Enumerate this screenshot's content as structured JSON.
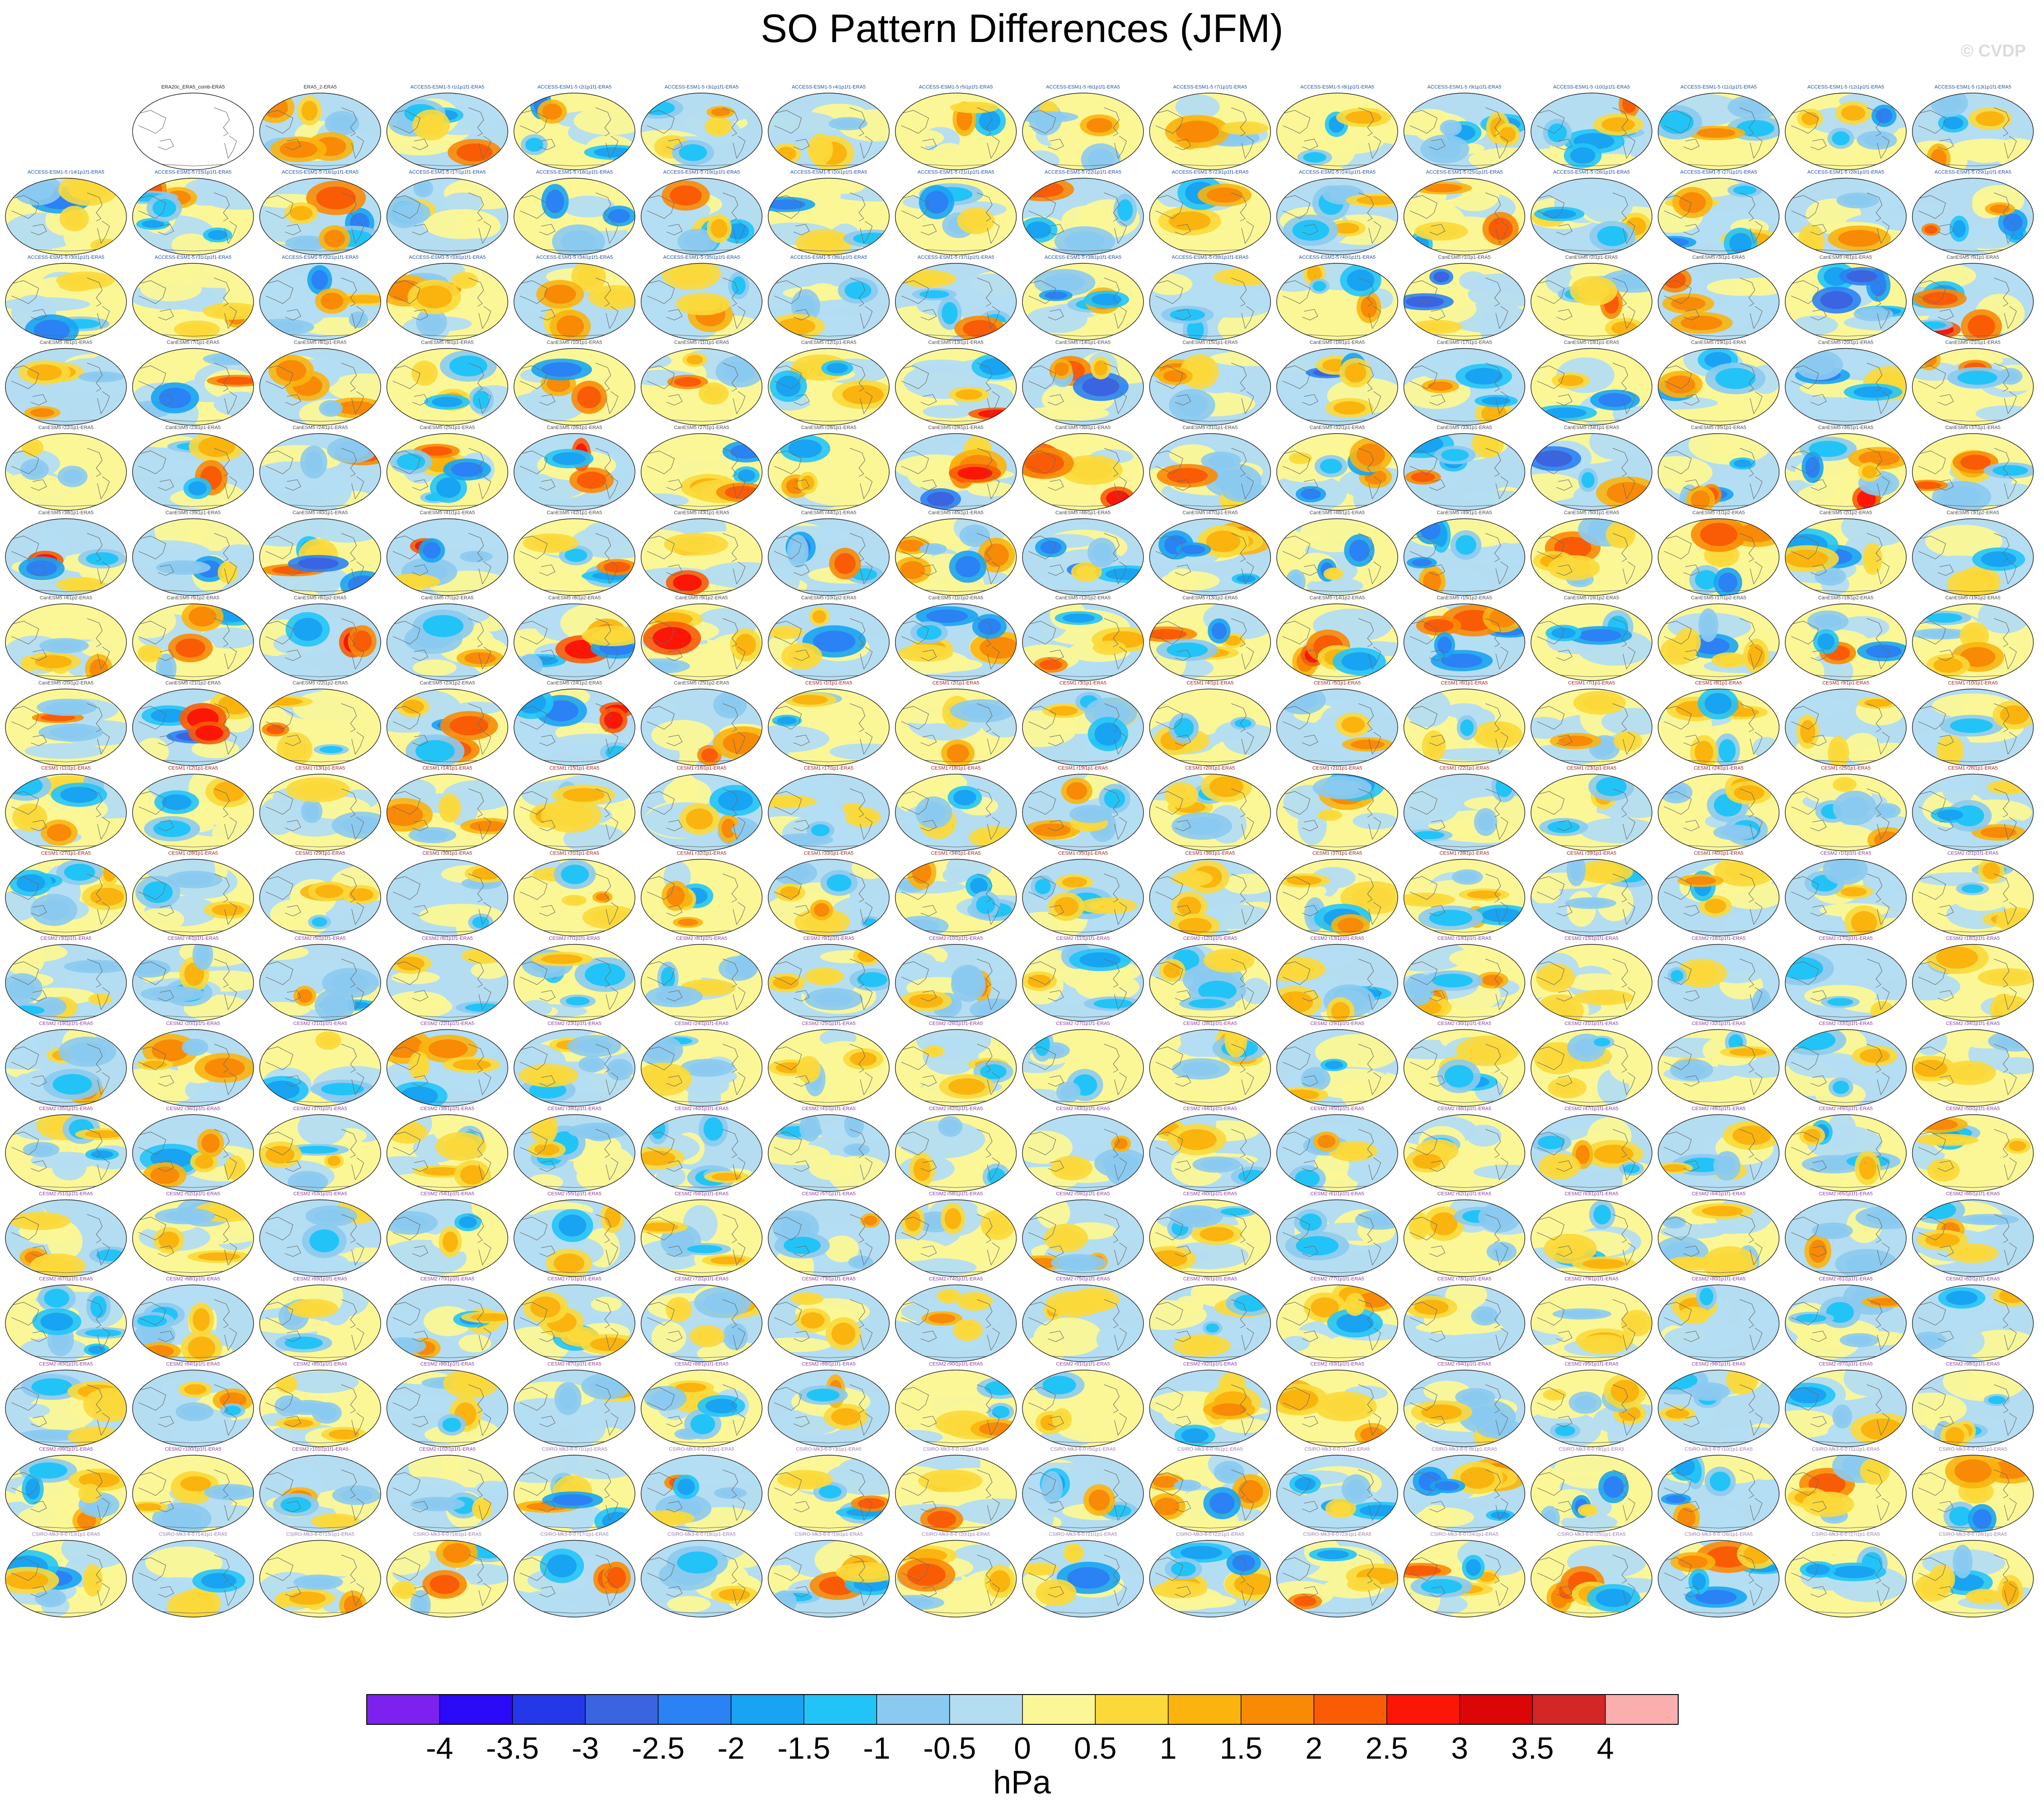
{
  "title": "SO Pattern Differences (JFM)",
  "watermark": "© CVDP",
  "unit_label": "hPa",
  "chart_data": {
    "type": "heatmap",
    "title": "SO Pattern Differences (JFM)",
    "units": "hPa",
    "grid": {
      "rows": 18,
      "cols": 16,
      "first_row_offset": 1
    },
    "reference_panel": {
      "title": "ERA20c_ERA5_comb-ERA5"
    },
    "colorbar": {
      "ticks": [
        "-4",
        "-3.5",
        "-3",
        "-2.5",
        "-2",
        "-1.5",
        "-1",
        "-0.5",
        "0",
        "0.5",
        "1",
        "1.5",
        "2",
        "2.5",
        "3",
        "3.5",
        "4"
      ],
      "colors": [
        "#7d22ee",
        "#2a0af7",
        "#2538e8",
        "#3a64e0",
        "#2a82f4",
        "#18a4f2",
        "#22c4f8",
        "#8bcaf0",
        "#b4ddf2",
        "#fbf796",
        "#fbd93a",
        "#fbb40e",
        "#f98a06",
        "#fa5c06",
        "#fb1606",
        "#dd0606",
        "#d32626",
        "#fbaeae"
      ]
    },
    "panel_titles": [
      "ERA5_2-ERA5",
      "ACCESS-ESM1-5 r1i1p1f1-ERA5",
      "ACCESS-ESM1-5 r2i1p1f1-ERA5",
      "ACCESS-ESM1-5 r3i1p1f1-ERA5",
      "ACCESS-ESM1-5 r4i1p1f1-ERA5",
      "ACCESS-ESM1-5 r5i1p1f1-ERA5",
      "ACCESS-ESM1-5 r6i1p1f1-ERA5",
      "ACCESS-ESM1-5 r7i1p1f1-ERA5",
      "ACCESS-ESM1-5 r8i1p1f1-ERA5",
      "ACCESS-ESM1-5 r9i1p1f1-ERA5",
      "ACCESS-ESM1-5 r10i1p1f1-ERA5",
      "ACCESS-ESM1-5 r11i1p1f1-ERA5",
      "ACCESS-ESM1-5 r12i1p1f1-ERA5",
      "ACCESS-ESM1-5 r13i1p1f1-ERA5",
      "ACCESS-ESM1-5 r14i1p1f1-ERA5",
      "ACCESS-ESM1-5 r15i1p1f1-ERA5",
      "ACCESS-ESM1-5 r16i1p1f1-ERA5",
      "ACCESS-ESM1-5 r17i1p1f1-ERA5",
      "ACCESS-ESM1-5 r18i1p1f1-ERA5",
      "ACCESS-ESM1-5 r19i1p1f1-ERA5",
      "ACCESS-ESM1-5 r20i1p1f1-ERA5",
      "ACCESS-ESM1-5 r21i1p1f1-ERA5",
      "ACCESS-ESM1-5 r22i1p1f1-ERA5",
      "ACCESS-ESM1-5 r23i1p1f1-ERA5",
      "ACCESS-ESM1-5 r24i1p1f1-ERA5",
      "ACCESS-ESM1-5 r25i1p1f1-ERA5",
      "ACCESS-ESM1-5 r26i1p1f1-ERA5",
      "ACCESS-ESM1-5 r27i1p1f1-ERA5",
      "ACCESS-ESM1-5 r28i1p1f1-ERA5",
      "ACCESS-ESM1-5 r29i1p1f1-ERA5",
      "ACCESS-ESM1-5 r30i1p1f1-ERA5",
      "ACCESS-ESM1-5 r31i1p1f1-ERA5",
      "ACCESS-ESM1-5 r32i1p1f1-ERA5",
      "ACCESS-ESM1-5 r33i1p1f1-ERA5",
      "ACCESS-ESM1-5 r34i1p1f1-ERA5",
      "ACCESS-ESM1-5 r35i1p1f1-ERA5",
      "ACCESS-ESM1-5 r36i1p1f1-ERA5",
      "ACCESS-ESM1-5 r37i1p1f1-ERA5",
      "ACCESS-ESM1-5 r38i1p1f1-ERA5",
      "ACCESS-ESM1-5 r39i1p1f1-ERA5",
      "ACCESS-ESM1-5 r40i1p1f1-ERA5",
      "CanESM5 r1i1p1-ERA5",
      "CanESM5 r2i1p1-ERA5",
      "CanESM5 r3i1p1-ERA5",
      "CanESM5 r4i1p1-ERA5",
      "CanESM5 r5i1p1-ERA5",
      "CanESM5 r6i1p1-ERA5",
      "CanESM5 r7i1p1-ERA5",
      "CanESM5 r8i1p1-ERA5",
      "CanESM5 r9i1p1-ERA5",
      "CanESM5 r10i1p1-ERA5",
      "CanESM5 r11i1p1-ERA5",
      "CanESM5 r12i1p1-ERA5",
      "CanESM5 r13i1p1-ERA5",
      "CanESM5 r14i1p1-ERA5",
      "CanESM5 r15i1p1-ERA5",
      "CanESM5 r16i1p1-ERA5",
      "CanESM5 r17i1p1-ERA5",
      "CanESM5 r18i1p1-ERA5",
      "CanESM5 r19i1p1-ERA5",
      "CanESM5 r20i1p1-ERA5",
      "CanESM5 r21i1p1-ERA5",
      "CanESM5 r22i1p1-ERA5",
      "CanESM5 r23i1p1-ERA5",
      "CanESM5 r24i1p1-ERA5",
      "CanESM5 r25i1p1-ERA5",
      "CanESM5 r26i1p1-ERA5",
      "CanESM5 r27i1p1-ERA5",
      "CanESM5 r28i1p1-ERA5",
      "CanESM5 r29i1p1-ERA5",
      "CanESM5 r30i1p1-ERA5",
      "CanESM5 r31i1p1-ERA5",
      "CanESM5 r32i1p1-ERA5",
      "CanESM5 r33i1p1-ERA5",
      "CanESM5 r34i1p1-ERA5",
      "CanESM5 r35i1p1-ERA5",
      "CanESM5 r36i1p1-ERA5",
      "CanESM5 r37i1p1-ERA5",
      "CanESM5 r38i1p1-ERA5",
      "CanESM5 r39i1p1-ERA5",
      "CanESM5 r40i1p1-ERA5",
      "CanESM5 r41i1p1-ERA5",
      "CanESM5 r42i1p1-ERA5",
      "CanESM5 r43i1p1-ERA5",
      "CanESM5 r44i1p1-ERA5",
      "CanESM5 r45i1p1-ERA5",
      "CanESM5 r46i1p1-ERA5",
      "CanESM5 r47i1p1-ERA5",
      "CanESM5 r48i1p1-ERA5",
      "CanESM5 r49i1p1-ERA5",
      "CanESM5 r50i1p1-ERA5",
      "CanESM5 r1i1p2-ERA5",
      "CanESM5 r2i1p2-ERA5",
      "CanESM5 r3i1p2-ERA5",
      "CanESM5 r4i1p2-ERA5",
      "CanESM5 r5i1p2-ERA5",
      "CanESM5 r6i1p2-ERA5",
      "CanESM5 r7i1p2-ERA5",
      "CanESM5 r8i1p2-ERA5",
      "CanESM5 r9i1p2-ERA5",
      "CanESM5 r10i1p2-ERA5",
      "CanESM5 r11i1p2-ERA5",
      "CanESM5 r12i1p2-ERA5",
      "CanESM5 r13i1p2-ERA5",
      "CanESM5 r14i1p2-ERA5",
      "CanESM5 r15i1p2-ERA5",
      "CanESM5 r16i1p2-ERA5",
      "CanESM5 r17i1p2-ERA5",
      "CanESM5 r18i1p2-ERA5",
      "CanESM5 r19i1p2-ERA5",
      "CanESM5 r20i1p2-ERA5",
      "CanESM5 r21i1p2-ERA5",
      "CanESM5 r22i1p2-ERA5",
      "CanESM5 r23i1p2-ERA5",
      "CanESM5 r24i1p2-ERA5",
      "CanESM5 r25i1p2-ERA5",
      "CESM1 r1i1p1-ERA5",
      "CESM1 r2i1p1-ERA5",
      "CESM1 r3i1p1-ERA5",
      "CESM1 r4i1p1-ERA5",
      "CESM1 r5i1p1-ERA5",
      "CESM1 r6i1p1-ERA5",
      "CESM1 r7i1p1-ERA5",
      "CESM1 r8i1p1-ERA5",
      "CESM1 r9i1p1-ERA5",
      "CESM1 r10i1p1-ERA5",
      "CESM1 r11i1p1-ERA5",
      "CESM1 r12i1p1-ERA5",
      "CESM1 r13i1p1-ERA5",
      "CESM1 r14i1p1-ERA5",
      "CESM1 r15i1p1-ERA5",
      "CESM1 r16i1p1-ERA5",
      "CESM1 r17i1p1-ERA5",
      "CESM1 r18i1p1-ERA5",
      "CESM1 r19i1p1-ERA5",
      "CESM1 r20i1p1-ERA5",
      "CESM1 r21i1p1-ERA5",
      "CESM1 r22i1p1-ERA5",
      "CESM1 r23i1p1-ERA5",
      "CESM1 r24i1p1-ERA5",
      "CESM1 r25i1p1-ERA5",
      "CESM1 r26i1p1-ERA5",
      "CESM1 r27i1p1-ERA5",
      "CESM1 r28i1p1-ERA5",
      "CESM1 r29i1p1-ERA5",
      "CESM1 r30i1p1-ERA5",
      "CESM1 r31i1p1-ERA5",
      "CESM1 r32i1p1-ERA5",
      "CESM1 r33i1p1-ERA5",
      "CESM1 r34i1p1-ERA5",
      "CESM1 r35i1p1-ERA5",
      "CESM1 r36i1p1-ERA5",
      "CESM1 r37i1p1-ERA5",
      "CESM1 r38i1p1-ERA5",
      "CESM1 r39i1p1-ERA5",
      "CESM1 r40i1p1-ERA5",
      "CESM2 r1i1p1f1-ERA5",
      "CESM2 r2i1p1f1-ERA5",
      "CESM2 r3i1p1f1-ERA5",
      "CESM2 r4i1p1f1-ERA5",
      "CESM2 r5i1p1f1-ERA5",
      "CESM2 r6i1p1f1-ERA5",
      "CESM2 r7i1p1f1-ERA5",
      "CESM2 r8i1p1f1-ERA5",
      "CESM2 r9i1p1f1-ERA5",
      "CESM2 r10i1p1f1-ERA5",
      "CESM2 r11i1p1f1-ERA5",
      "CESM2 r12i1p1f1-ERA5",
      "CESM2 r13i1p1f1-ERA5",
      "CESM2 r14i1p1f1-ERA5",
      "CESM2 r15i1p1f1-ERA5",
      "CESM2 r16i1p1f1-ERA5",
      "CESM2 r17i1p1f1-ERA5",
      "CESM2 r18i1p1f1-ERA5",
      "CESM2 r19i1p1f1-ERA5",
      "CESM2 r20i1p1f1-ERA5",
      "CESM2 r21i1p1f1-ERA5",
      "CESM2 r22i1p1f1-ERA5",
      "CESM2 r23i1p1f1-ERA5",
      "CESM2 r24i1p1f1-ERA5",
      "CESM2 r25i1p1f1-ERA5",
      "CESM2 r26i1p1f1-ERA5",
      "CESM2 r27i1p1f1-ERA5",
      "CESM2 r28i1p1f1-ERA5",
      "CESM2 r29i1p1f1-ERA5",
      "CESM2 r30i1p1f1-ERA5",
      "CESM2 r31i1p1f1-ERA5",
      "CESM2 r32i1p1f1-ERA5",
      "CESM2 r33i1p1f1-ERA5",
      "CESM2 r34i1p1f1-ERA5",
      "CESM2 r35i1p1f1-ERA5",
      "CESM2 r36i1p1f1-ERA5",
      "CESM2 r37i1p1f1-ERA5",
      "CESM2 r38i1p1f1-ERA5",
      "CESM2 r39i1p1f1-ERA5",
      "CESM2 r40i1p1f1-ERA5",
      "CESM2 r41i1p1f1-ERA5",
      "CESM2 r42i1p1f1-ERA5",
      "CESM2 r43i1p1f1-ERA5",
      "CESM2 r44i1p1f1-ERA5",
      "CESM2 r45i1p1f1-ERA5",
      "CESM2 r46i1p1f1-ERA5",
      "CESM2 r47i1p1f1-ERA5",
      "CESM2 r48i1p1f1-ERA5",
      "CESM2 r49i1p1f1-ERA5",
      "CESM2 r50i1p1f1-ERA5",
      "CESM2 r51i1p1f1-ERA5",
      "CESM2 r52i1p1f1-ERA5",
      "CESM2 r53i1p1f1-ERA5",
      "CESM2 r54i1p1f1-ERA5",
      "CESM2 r55i1p1f1-ERA5",
      "CESM2 r56i1p1f1-ERA5",
      "CESM2 r57i1p1f1-ERA5",
      "CESM2 r58i1p1f1-ERA5",
      "CESM2 r59i1p1f1-ERA5",
      "CESM2 r60i1p1f1-ERA5",
      "CESM2 r61i1p1f1-ERA5",
      "CESM2 r62i1p1f1-ERA5",
      "CESM2 r63i1p1f1-ERA5",
      "CESM2 r64i1p1f1-ERA5",
      "CESM2 r65i1p1f1-ERA5",
      "CESM2 r66i1p1f1-ERA5",
      "CESM2 r67i1p1f1-ERA5",
      "CESM2 r68i1p1f1-ERA5",
      "CESM2 r69i1p1f1-ERA5",
      "CESM2 r70i1p1f1-ERA5",
      "CESM2 r71i1p1f1-ERA5",
      "CESM2 r72i1p1f1-ERA5",
      "CESM2 r73i1p1f1-ERA5",
      "CESM2 r74i1p1f1-ERA5",
      "CESM2 r75i1p1f1-ERA5",
      "CESM2 r76i1p1f1-ERA5",
      "CESM2 r77i1p1f1-ERA5",
      "CESM2 r78i1p1f1-ERA5",
      "CESM2 r79i1p1f1-ERA5",
      "CESM2 r80i1p1f1-ERA5",
      "CESM2 r81i1p1f1-ERA5",
      "CESM2 r82i1p1f1-ERA5",
      "CESM2 r83i1p1f1-ERA5",
      "CESM2 r84i1p1f1-ERA5",
      "CESM2 r85i1p1f1-ERA5",
      "CESM2 r86i1p1f1-ERA5",
      "CESM2 r87i1p1f1-ERA5",
      "CESM2 r88i1p1f1-ERA5",
      "CESM2 r89i1p1f1-ERA5",
      "CESM2 r90i1p1f1-ERA5",
      "CESM2 r91i1p1f1-ERA5",
      "CESM2 r92i1p1f1-ERA5",
      "CESM2 r93i1p1f1-ERA5",
      "CESM2 r94i1p1f1-ERA5",
      "CESM2 r95i1p1f1-ERA5",
      "CESM2 r96i1p1f1-ERA5",
      "CESM2 r97i1p1f1-ERA5",
      "CESM2 r98i1p1f1-ERA5",
      "CESM2 r99i1p1f1-ERA5",
      "CESM2 r100i1p1f1-ERA5",
      "CESM2 r101i1p1f1-ERA5",
      "CESM2 r102i1p1f1-ERA5",
      "CSIRO-Mk3-6-0 r1i1p1-ERA5",
      "CSIRO-Mk3-6-0 r2i1p1-ERA5",
      "CSIRO-Mk3-6-0 r3i1p1-ERA5",
      "CSIRO-Mk3-6-0 r4i1p1-ERA5",
      "CSIRO-Mk3-6-0 r5i1p1-ERA5",
      "CSIRO-Mk3-6-0 r6i1p1-ERA5",
      "CSIRO-Mk3-6-0 r7i1p1-ERA5",
      "CSIRO-Mk3-6-0 r8i1p1-ERA5",
      "CSIRO-Mk3-6-0 r9i1p1-ERA5",
      "CSIRO-Mk3-6-0 r10i1p1-ERA5",
      "CSIRO-Mk3-6-0 r11i1p1-ERA5",
      "CSIRO-Mk3-6-0 r12i1p1-ERA5",
      "CSIRO-Mk3-6-0 r13i1p1-ERA5",
      "CSIRO-Mk3-6-0 r14i1p1-ERA5",
      "CSIRO-Mk3-6-0 r15i1p1-ERA5",
      "CSIRO-Mk3-6-0 r16i1p1-ERA5",
      "CSIRO-Mk3-6-0 r17i1p1-ERA5",
      "CSIRO-Mk3-6-0 r18i1p1-ERA5",
      "CSIRO-Mk3-6-0 r19i1p1-ERA5",
      "CSIRO-Mk3-6-0 r20i1p1-ERA5",
      "CSIRO-Mk3-6-0 r21i1p1-ERA5",
      "CSIRO-Mk3-6-0 r22i1p1-ERA5",
      "CSIRO-Mk3-6-0 r23i1p1-ERA5",
      "CSIRO-Mk3-6-0 r24i1p1-ERA5",
      "CSIRO-Mk3-6-0 r25i1p1-ERA5",
      "CSIRO-Mk3-6-0 r26i1p1-ERA5",
      "CSIRO-Mk3-6-0 r27i1p1-ERA5",
      "CSIRO-Mk3-6-0 r28i1p1-ERA5",
      "CSIRO-Mk3-6-0 r29i1p1-ERA5",
      "CSIRO-Mk3-6-0 r30i1p1-ERA5"
    ]
  }
}
